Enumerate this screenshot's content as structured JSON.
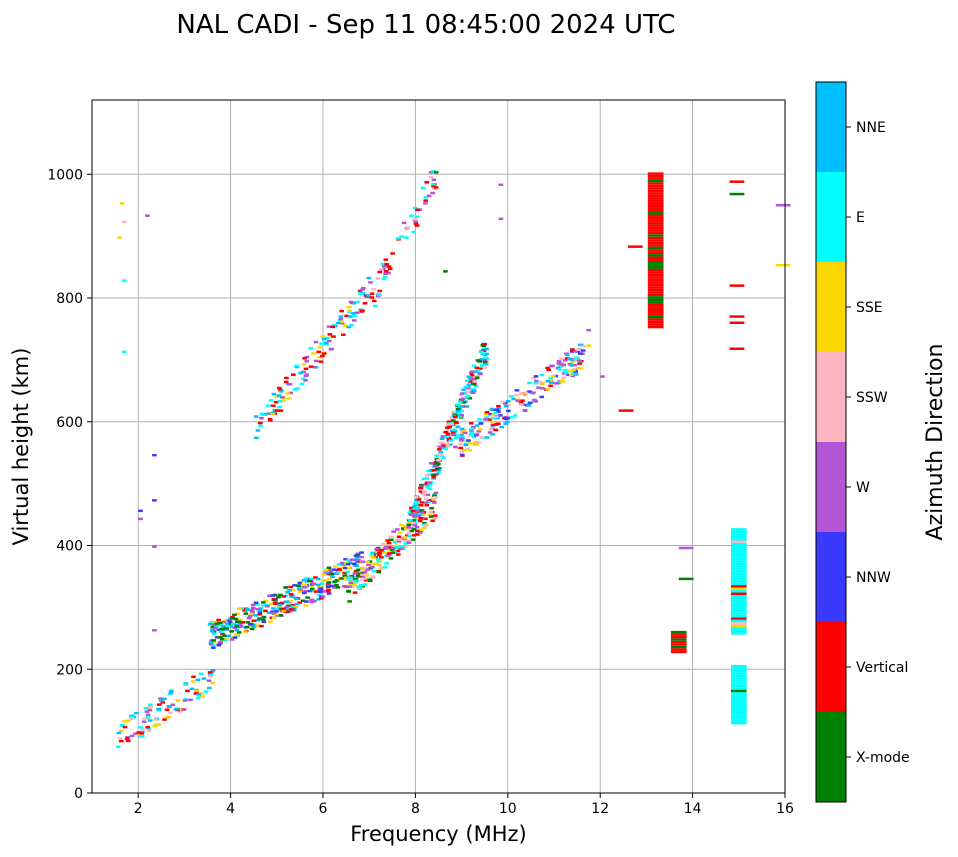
{
  "chart_data": {
    "type": "scatter",
    "title": "NAL CADI - Sep 11 08:45:00 2024 UTC",
    "xlabel": "Frequency (MHz)",
    "ylabel": "Virtual height (km)",
    "xlim": [
      1,
      16
    ],
    "ylim": [
      0,
      1120
    ],
    "xticks": [
      2,
      4,
      6,
      8,
      10,
      12,
      14,
      16
    ],
    "yticks": [
      0,
      200,
      400,
      600,
      800,
      1000
    ],
    "grid": true,
    "colorbar": {
      "title": "Azimuth Direction",
      "categories": [
        {
          "name": "X-mode",
          "color": "#008000"
        },
        {
          "name": "Vertical",
          "color": "#ff0000"
        },
        {
          "name": "NNW",
          "color": "#3a3aff"
        },
        {
          "name": "W",
          "color": "#b455d8"
        },
        {
          "name": "SSW",
          "color": "#ffb6c1"
        },
        {
          "name": "SSE",
          "color": "#ffd700"
        },
        {
          "name": "E",
          "color": "#00ffff"
        },
        {
          "name": "NNE",
          "color": "#00bfff"
        }
      ]
    },
    "segments": [
      {
        "x0": 1.5,
        "x1": 3.6,
        "h0": 90,
        "h1": 190,
        "count": 110,
        "colors": [
          "Vertical",
          "E",
          "SSE",
          "NNE",
          "SSW",
          "W"
        ]
      },
      {
        "x0": 3.5,
        "x1": 6.8,
        "h0": 255,
        "h1": 370,
        "count": 380,
        "colors": [
          "Vertical",
          "E",
          "NNE",
          "SSE",
          "W",
          "NNW",
          "X-mode"
        ]
      },
      {
        "x0": 6.5,
        "x1": 8.4,
        "h0": 330,
        "h1": 470,
        "count": 220,
        "colors": [
          "Vertical",
          "E",
          "X-mode",
          "W",
          "SSW",
          "SSE"
        ]
      },
      {
        "x0": 7.8,
        "x1": 9.5,
        "h0": 430,
        "h1": 720,
        "count": 260,
        "colors": [
          "Vertical",
          "SSW",
          "X-mode",
          "W",
          "NNE",
          "E"
        ]
      },
      {
        "x0": 8.8,
        "x1": 11.6,
        "h0": 560,
        "h1": 710,
        "count": 220,
        "colors": [
          "E",
          "W",
          "SSW",
          "NNW",
          "NNE",
          "Vertical",
          "SSE"
        ]
      },
      {
        "x0": 4.5,
        "x1": 7.0,
        "h0": 590,
        "h1": 820,
        "count": 130,
        "colors": [
          "Vertical",
          "NNE",
          "E",
          "SSE",
          "W"
        ]
      },
      {
        "x0": 7.0,
        "x1": 8.4,
        "h0": 800,
        "h1": 1000,
        "count": 60,
        "colors": [
          "Vertical",
          "W",
          "E",
          "SSW"
        ]
      }
    ],
    "columns": [
      {
        "x": 13.2,
        "h0": 755,
        "h1": 1005,
        "colors": [
          "Vertical",
          "X-mode"
        ]
      },
      {
        "x": 15.0,
        "h0": 260,
        "h1": 430,
        "colors": [
          "E",
          "SSW",
          "Vertical",
          "SSE"
        ]
      },
      {
        "x": 15.0,
        "h0": 115,
        "h1": 210,
        "colors": [
          "E",
          "X-mode"
        ]
      },
      {
        "x": 13.7,
        "h0": 230,
        "h1": 265,
        "colors": [
          "Vertical",
          "X-mode"
        ]
      }
    ],
    "isolated": [
      {
        "x": 1.6,
        "h": 955,
        "c": "SSE"
      },
      {
        "x": 1.55,
        "h": 900,
        "c": "SSE"
      },
      {
        "x": 1.65,
        "h": 925,
        "c": "SSW"
      },
      {
        "x": 2.15,
        "h": 935,
        "c": "W"
      },
      {
        "x": 1.65,
        "h": 830,
        "c": "E"
      },
      {
        "x": 1.65,
        "h": 715,
        "c": "E"
      },
      {
        "x": 2.3,
        "h": 548,
        "c": "NNW"
      },
      {
        "x": 2.3,
        "h": 475,
        "c": "NNW"
      },
      {
        "x": 2.0,
        "h": 458,
        "c": "NNW"
      },
      {
        "x": 2.0,
        "h": 445,
        "c": "W"
      },
      {
        "x": 2.3,
        "h": 400,
        "c": "W"
      },
      {
        "x": 2.3,
        "h": 265,
        "c": "W"
      },
      {
        "x": 8.4,
        "h": 1005,
        "c": "X-mode"
      },
      {
        "x": 9.8,
        "h": 985,
        "c": "W"
      },
      {
        "x": 9.8,
        "h": 930,
        "c": "W"
      },
      {
        "x": 12.6,
        "h": 885,
        "c": "Vertical"
      },
      {
        "x": 12.4,
        "h": 620,
        "c": "Vertical"
      },
      {
        "x": 14.8,
        "h": 990,
        "c": "Vertical"
      },
      {
        "x": 14.8,
        "h": 970,
        "c": "X-mode"
      },
      {
        "x": 14.8,
        "h": 822,
        "c": "Vertical"
      },
      {
        "x": 14.8,
        "h": 772,
        "c": "Vertical"
      },
      {
        "x": 14.8,
        "h": 762,
        "c": "Vertical"
      },
      {
        "x": 14.8,
        "h": 720,
        "c": "Vertical"
      },
      {
        "x": 15.8,
        "h": 952,
        "c": "W"
      },
      {
        "x": 15.8,
        "h": 855,
        "c": "SSE"
      },
      {
        "x": 13.7,
        "h": 398,
        "c": "W"
      },
      {
        "x": 13.7,
        "h": 348,
        "c": "X-mode"
      },
      {
        "x": 8.6,
        "h": 845,
        "c": "X-mode"
      },
      {
        "x": 11.7,
        "h": 750,
        "c": "W"
      },
      {
        "x": 11.7,
        "h": 725,
        "c": "SSE"
      },
      {
        "x": 12.0,
        "h": 675,
        "c": "W"
      }
    ]
  }
}
